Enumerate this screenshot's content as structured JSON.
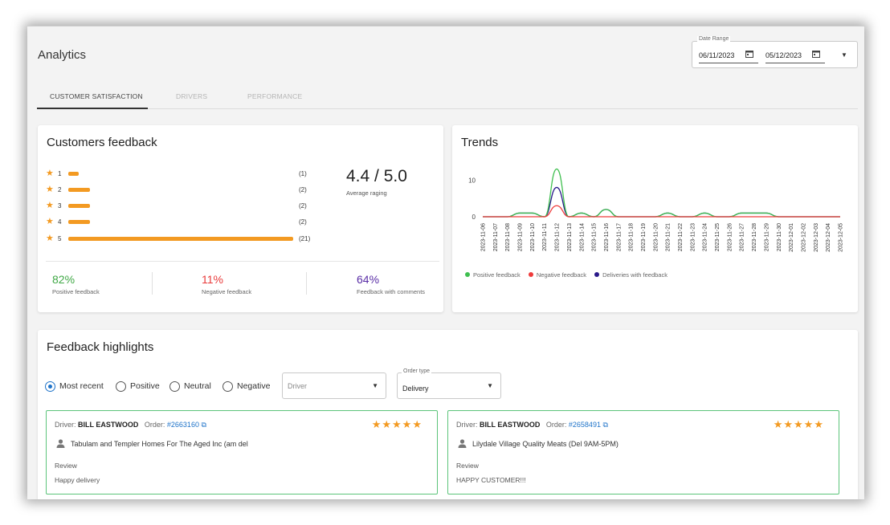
{
  "page": {
    "title": "Analytics"
  },
  "date_range": {
    "label": "Date Range",
    "start": "06/11/2023",
    "end": "05/12/2023"
  },
  "tabs": [
    {
      "label": "CUSTOMER SATISFACTION",
      "active": true
    },
    {
      "label": "DRIVERS",
      "active": false
    },
    {
      "label": "PERFORMANCE",
      "active": false
    }
  ],
  "customers_feedback": {
    "title": "Customers feedback",
    "ratings": [
      {
        "stars": "1",
        "count": 1,
        "count_label": "(1)"
      },
      {
        "stars": "2",
        "count": 2,
        "count_label": "(2)"
      },
      {
        "stars": "3",
        "count": 2,
        "count_label": "(2)"
      },
      {
        "stars": "4",
        "count": 2,
        "count_label": "(2)"
      },
      {
        "stars": "5",
        "count": 21,
        "count_label": "(21)"
      }
    ],
    "average_value": "4.4 / 5.0",
    "average_label": "Average raging",
    "stats": [
      {
        "value": "82%",
        "label": "Positive feedback",
        "color": "#3fa845"
      },
      {
        "value": "11%",
        "label": "Negative feedback",
        "color": "#e83a3a"
      },
      {
        "value": "64%",
        "label": "Feedback with comments",
        "color": "#5a2ea6"
      }
    ]
  },
  "trends": {
    "title": "Trends",
    "legend": [
      {
        "label": "Positive feedback",
        "color": "#3fbf4f"
      },
      {
        "label": "Negative feedback",
        "color": "#ef3b3b"
      },
      {
        "label": "Deliveries with feedback",
        "color": "#2a1a8a"
      }
    ]
  },
  "chart_data": {
    "type": "line",
    "x": [
      "2023-11-06",
      "2023-11-07",
      "2023-11-08",
      "2023-11-09",
      "2023-11-10",
      "2023-11-11",
      "2023-11-12",
      "2023-11-13",
      "2023-11-14",
      "2023-11-15",
      "2023-11-16",
      "2023-11-17",
      "2023-11-18",
      "2023-11-19",
      "2023-11-20",
      "2023-11-21",
      "2023-11-22",
      "2023-11-23",
      "2023-11-24",
      "2023-11-25",
      "2023-11-26",
      "2023-11-27",
      "2023-11-28",
      "2023-11-29",
      "2023-11-30",
      "2023-12-01",
      "2023-12-02",
      "2023-12-03",
      "2023-12-04",
      "2023-12-05"
    ],
    "yticks": [
      0,
      10
    ],
    "ylim": [
      0,
      14
    ],
    "series": [
      {
        "name": "Positive feedback",
        "color": "#3fbf4f",
        "values": [
          0,
          0,
          0,
          1,
          1,
          0,
          13,
          0,
          1,
          0,
          2,
          0,
          0,
          0,
          0,
          1,
          0,
          0,
          1,
          0,
          0,
          1,
          1,
          1,
          0,
          0,
          0,
          0,
          0,
          0
        ]
      },
      {
        "name": "Negative feedback",
        "color": "#ef3b3b",
        "values": [
          0,
          0,
          0,
          0,
          0,
          0,
          3,
          0,
          0,
          0,
          0,
          0,
          0,
          0,
          0,
          0,
          0,
          0,
          0,
          0,
          0,
          0,
          0,
          0,
          0,
          0,
          0,
          0,
          0,
          0
        ]
      },
      {
        "name": "Deliveries with feedback",
        "color": "#2a1a8a",
        "values": [
          0,
          0,
          0,
          1,
          1,
          0,
          8,
          0,
          1,
          0,
          2,
          0,
          0,
          0,
          0,
          1,
          0,
          0,
          1,
          0,
          0,
          1,
          1,
          1,
          0,
          0,
          0,
          0,
          0,
          0
        ]
      }
    ]
  },
  "highlights": {
    "title": "Feedback highlights",
    "filters": [
      {
        "label": "Most recent",
        "selected": true
      },
      {
        "label": "Positive",
        "selected": false
      },
      {
        "label": "Neutral",
        "selected": false
      },
      {
        "label": "Negative",
        "selected": false
      }
    ],
    "driver_select": {
      "placeholder": "Driver"
    },
    "order_type_select": {
      "label": "Order type",
      "value": "Delivery"
    },
    "cards": [
      {
        "driver_prefix": "Driver:",
        "driver": "BILL EASTWOOD",
        "order_prefix": "Order:",
        "order": "#2663160",
        "rating": 5,
        "stars": "★★★★★",
        "location": "Tabulam and Templer Homes For The Aged Inc (am del",
        "review_label": "Review",
        "review": "Happy delivery"
      },
      {
        "driver_prefix": "Driver:",
        "driver": "BILL EASTWOOD",
        "order_prefix": "Order:",
        "order": "#2658491",
        "rating": 5,
        "stars": "★★★★★",
        "location": "Lilydale Village Quality Meats (Del 9AM-5PM)",
        "review_label": "Review",
        "review": "HAPPY CUSTOMER!!!"
      }
    ]
  }
}
